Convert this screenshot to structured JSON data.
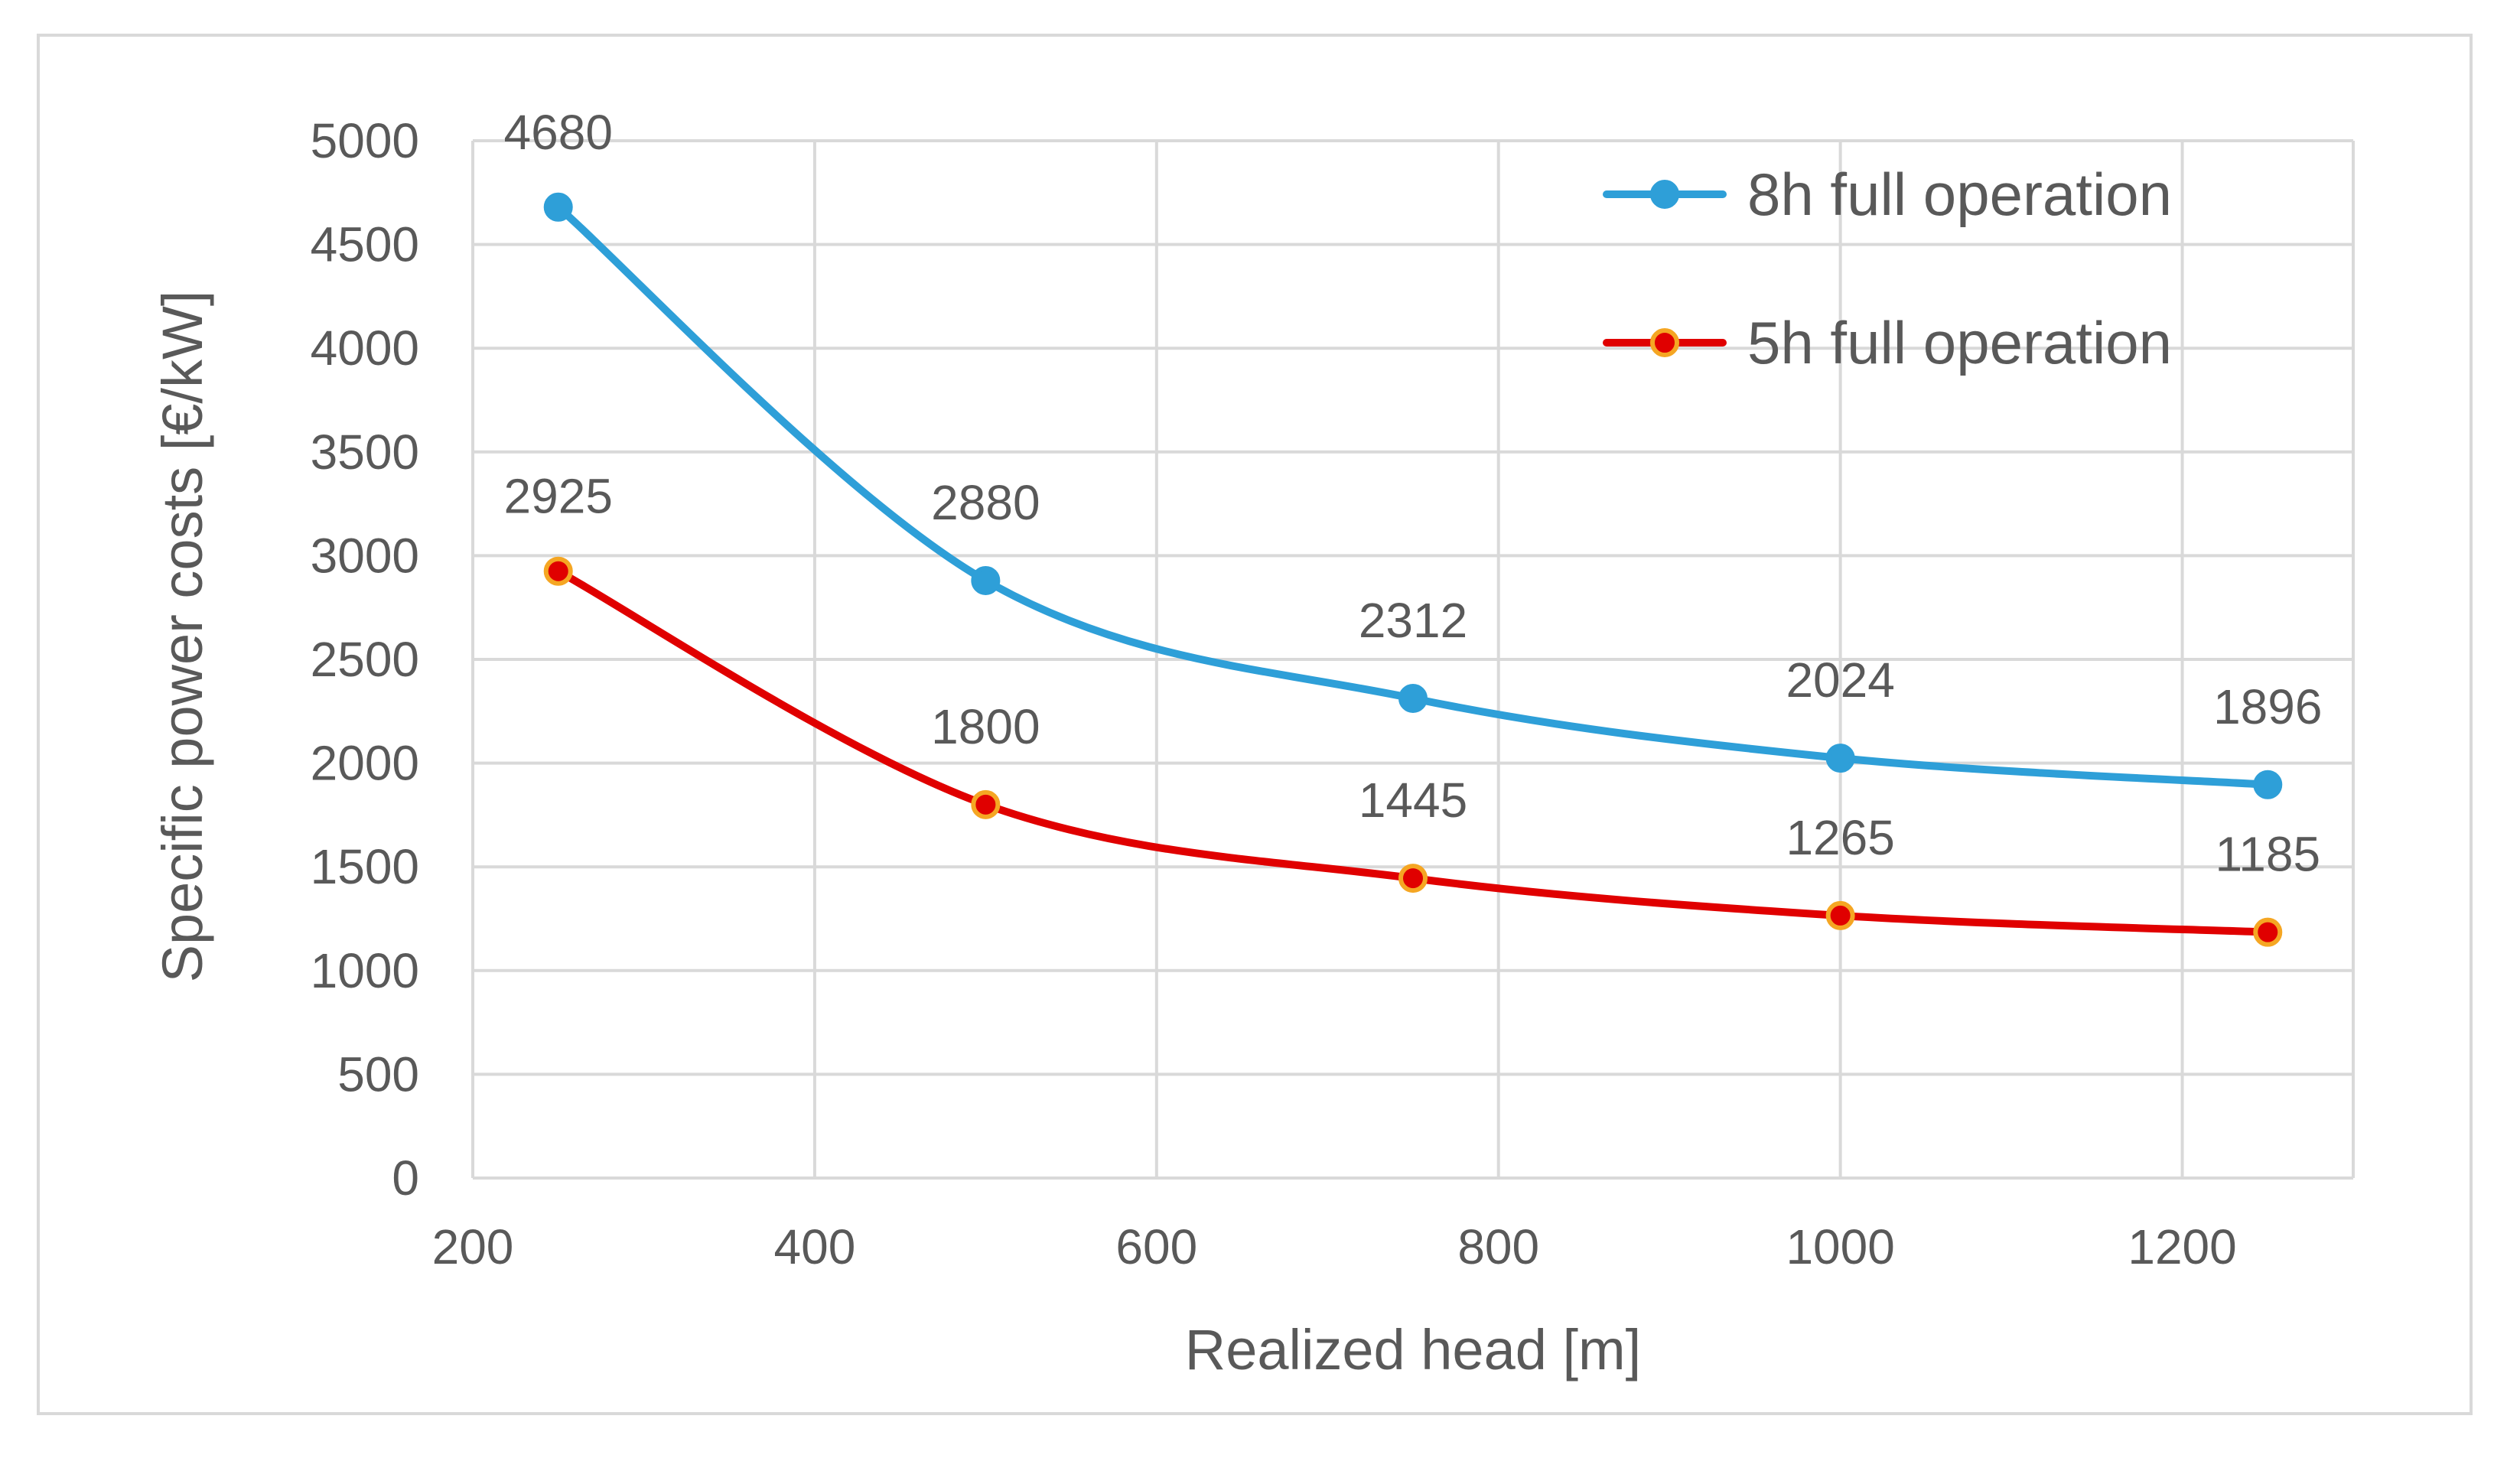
{
  "chart_data": {
    "type": "line",
    "title": "",
    "xlabel": "Realized head [m]",
    "ylabel": "Specific power costs [€/kW]",
    "xlim": [
      200,
      1300
    ],
    "ylim": [
      0,
      5000
    ],
    "x_ticks": [
      200,
      400,
      600,
      800,
      1000,
      1200
    ],
    "y_ticks": [
      0,
      500,
      1000,
      1500,
      2000,
      2500,
      3000,
      3500,
      4000,
      4500,
      5000
    ],
    "grid": true,
    "legend_position": "top-right",
    "x": [
      250,
      500,
      750,
      1000,
      1250
    ],
    "series": [
      {
        "name": "8h full operation",
        "values": [
          4680,
          2880,
          2312,
          2024,
          1896
        ],
        "color": "#2e9fd8",
        "marker_fill": "#2e9fd8",
        "marker_edge": "#2e9fd8"
      },
      {
        "name": "5h full operation",
        "values": [
          2925,
          1800,
          1445,
          1265,
          1185
        ],
        "color": "#e00000",
        "marker_fill": "#e00000",
        "marker_edge": "#f5a623"
      }
    ],
    "colors": {
      "gridline": "#d9d9d9",
      "text": "#595959"
    }
  }
}
